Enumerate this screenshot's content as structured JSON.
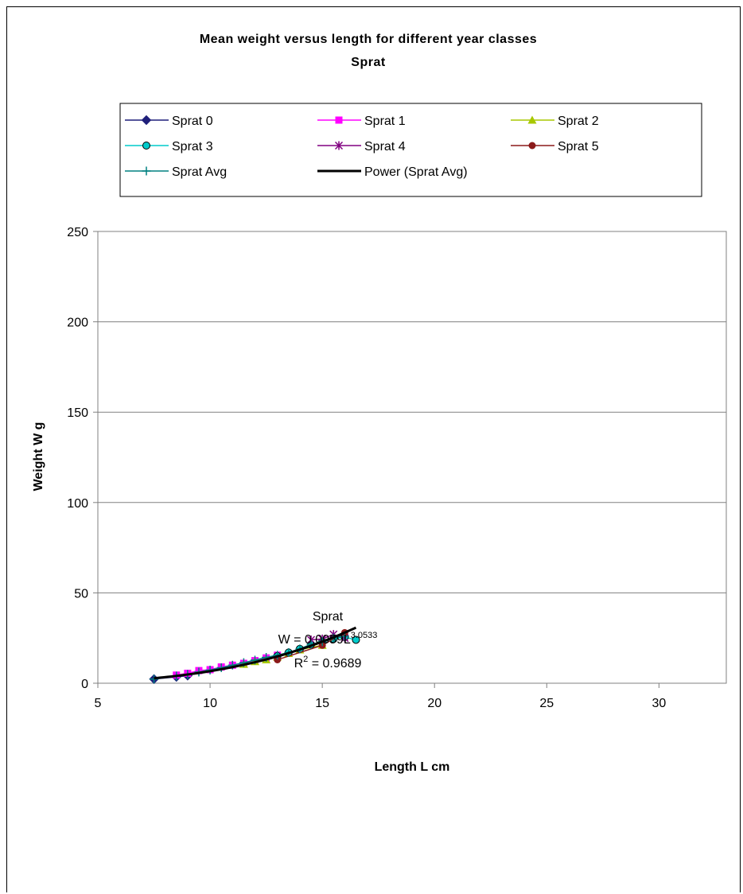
{
  "chart_data": {
    "type": "scatter",
    "title": "Mean weight versus length for different year classes",
    "subtitle": "Sprat",
    "xlabel": "Length L cm",
    "ylabel": "Weight W g",
    "xlim": [
      5,
      33
    ],
    "ylim": [
      0,
      250
    ],
    "xticks": [
      "5",
      "10",
      "15",
      "20",
      "25",
      "30"
    ],
    "yticks": [
      "0",
      "50",
      "100",
      "150",
      "200",
      "250"
    ],
    "grid": "horizontal",
    "legend_position": "top",
    "series": [
      {
        "name": "Sprat 0",
        "color": "#1f1f7a",
        "marker": "diamond",
        "x": [
          7.5,
          8.5,
          9.0
        ],
        "y": [
          2.3,
          3.5,
          4.2
        ]
      },
      {
        "name": "Sprat 1",
        "color": "#ff00ff",
        "marker": "square",
        "x": [
          8.5,
          9.0,
          9.5,
          10.0,
          10.5,
          11.0,
          11.5,
          12.0,
          12.5,
          13.0
        ],
        "y": [
          4.5,
          5.5,
          7.0,
          7.5,
          9.0,
          10.0,
          11.0,
          12.5,
          14.0,
          15.5
        ]
      },
      {
        "name": "Sprat 2",
        "color": "#a8c800",
        "marker": "triangle",
        "x": [
          11.5,
          12.0,
          12.5,
          13.0,
          13.5,
          14.0,
          15.0
        ],
        "y": [
          10.5,
          12.0,
          13.0,
          14.5,
          16.5,
          18.5,
          21.0
        ]
      },
      {
        "name": "Sprat 3",
        "color": "#00cccc",
        "marker": "circle",
        "x": [
          13.0,
          13.5,
          14.0,
          14.5,
          15.0,
          15.5,
          16.0,
          16.5
        ],
        "y": [
          15.0,
          17.0,
          19.0,
          21.5,
          23.0,
          24.5,
          25.5,
          24.0
        ]
      },
      {
        "name": "Sprat 4",
        "color": "#800080",
        "marker": "star",
        "x": [
          14.5,
          15.0,
          15.5,
          16.0
        ],
        "y": [
          24.0,
          24.5,
          27.0,
          25.0
        ]
      },
      {
        "name": "Sprat 5",
        "color": "#8b1a1a",
        "marker": "dot",
        "x": [
          13.0,
          15.0,
          16.0
        ],
        "y": [
          13.0,
          21.0,
          28.0
        ]
      },
      {
        "name": "Sprat Avg",
        "color": "#008080",
        "marker": "plus",
        "x": [
          7.5,
          8.5,
          9.0,
          9.5,
          10.0,
          10.5,
          11.0,
          11.5,
          12.0,
          12.5,
          13.0,
          13.5,
          14.0,
          14.5,
          15.0,
          15.5,
          16.0
        ],
        "y": [
          2.3,
          4.0,
          4.9,
          6.2,
          7.3,
          8.6,
          10.0,
          11.4,
          12.8,
          14.3,
          15.5,
          17.0,
          19.0,
          21.5,
          23.0,
          25.0,
          26.0
        ]
      }
    ],
    "trendline": {
      "name": "Power (Sprat Avg)",
      "color": "#000000",
      "a": 0.0059,
      "b": 3.0533,
      "x_range": [
        7.5,
        16.5
      ]
    },
    "annotation": {
      "line1": "Sprat",
      "line2_prefix": "W = 0.0059L",
      "line2_exp": "3.0533",
      "line3_prefix": "R",
      "line3_exp": "2",
      "line3_suffix": " = 0.9689"
    }
  }
}
